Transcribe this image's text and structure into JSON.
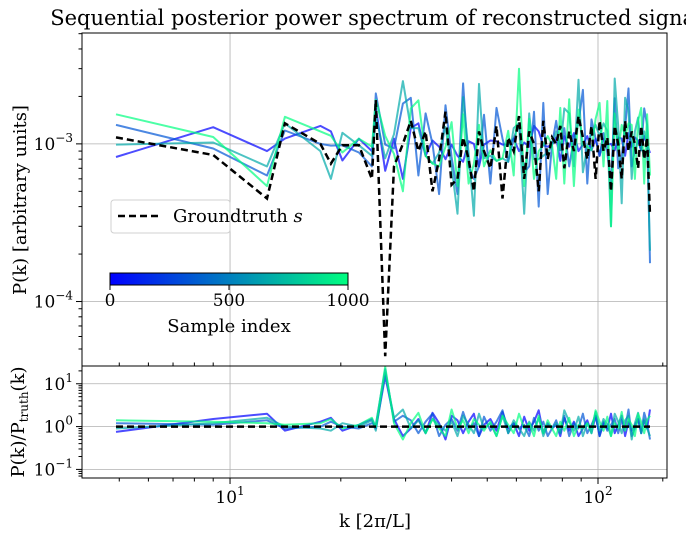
{
  "chart_data": [
    {
      "type": "line",
      "title": "Sequential posterior power spectrum of reconstructed signal",
      "ylabel": "P(k) [arbitrary units]",
      "xscale": "log",
      "yscale": "log",
      "xlim": [
        3.96,
        154
      ],
      "ylim": [
        3.9e-05,
        0.00505
      ],
      "grid": true,
      "x_ticks": [
        {
          "value": 10,
          "base": "10",
          "exp": "1"
        },
        {
          "value": 100,
          "base": "10",
          "exp": "2"
        }
      ],
      "y_ticks": [
        {
          "value": 0.001,
          "base": "10",
          "exp": "−3"
        },
        {
          "value": 0.0001,
          "base": "10",
          "exp": "−4"
        }
      ],
      "legend": {
        "placement": "center-left",
        "entries": [
          {
            "label": "Groundtruth s",
            "style": "dashed",
            "color": "#000000"
          }
        ]
      },
      "colorbar": {
        "label": "Sample index",
        "colormap": "winter",
        "range": [
          0,
          1000
        ],
        "ticks": [
          "0",
          "500",
          "1000"
        ],
        "color_start": "#0000ff",
        "color_end": "#00ff80"
      },
      "k": [
        4.9,
        9.0,
        12.6,
        14.1,
        17.6,
        18.8,
        20.2,
        22.4,
        24.3,
        24.9,
        26.4,
        27.9,
        29.5,
        31,
        32.5,
        34,
        35.5,
        37,
        38.5,
        40,
        41.5,
        43,
        44.5,
        46,
        47.5,
        49,
        51,
        53,
        55,
        57,
        59,
        61,
        63,
        65,
        67,
        69,
        71,
        73,
        75,
        77,
        79,
        81,
        83.5,
        86,
        88.5,
        91,
        93.5,
        96,
        98.5,
        101,
        103.5,
        106,
        108.5,
        111,
        113.5,
        116,
        118.5,
        121,
        123.5,
        126,
        128.5,
        131,
        133.5,
        136,
        138.5
      ],
      "groundtruth": [
        0.0011,
        0.00085,
        0.00045,
        0.00135,
        0.001,
        0.00075,
        0.00098,
        0.00098,
        0.0006,
        0.0019,
        4.5e-05,
        0.00072,
        0.001,
        0.0014,
        0.0009,
        0.0012,
        0.0005,
        0.0008,
        0.0016,
        0.00055,
        0.0006,
        0.0011,
        0.0008,
        0.0005,
        0.0012,
        0.0009,
        0.0007,
        0.0013,
        0.00045,
        0.0011,
        0.0009,
        0.0015,
        0.0006,
        0.0012,
        0.001,
        0.0005,
        0.0014,
        0.0008,
        0.0011,
        0.001,
        0.0013,
        0.0007,
        0.0012,
        0.0009,
        0.0015,
        0.0011,
        0.0008,
        0.0013,
        0.0006,
        0.0014,
        0.0009,
        0.0011,
        0.0005,
        0.0013,
        0.001,
        0.0006,
        0.0014,
        0.0009,
        0.0012,
        0.001,
        0.0007,
        0.0013,
        0.0008,
        0.0011,
        0.00035
      ]
    },
    {
      "type": "line",
      "xlabel": "k [2π/L]",
      "ylabel": "P(k)/P_truth(k)",
      "ylabel_parts": {
        "main": "P(k)/P",
        "sub": "truth",
        "tail": "(k)"
      },
      "xscale": "log",
      "yscale": "log",
      "ylim": [
        0.063,
        26
      ],
      "grid": true,
      "y_ticks": [
        {
          "value": 10,
          "base": "10",
          "exp": "1"
        },
        {
          "value": 1,
          "base": "10",
          "exp": "0"
        },
        {
          "value": 0.1,
          "base": "10",
          "exp": "−1"
        }
      ],
      "groundtruth_ratio": 1.0,
      "sample_ratios": [
        {
          "sample_index": 0,
          "color": "#0000ff",
          "values": [
            0.75,
            1.5,
            2.0,
            0.8,
            1.3,
            1.6,
            0.8,
            1.1,
            1.5,
            0.9,
            15,
            1.5,
            0.6,
            0.9,
            1.5,
            0.7,
            2.1,
            1.2,
            0.5,
            1.8,
            1.4,
            0.7,
            1.3,
            2.0,
            0.6,
            1.1,
            1.5,
            0.8,
            2.2,
            0.9,
            1.2,
            0.6,
            1.7,
            0.8,
            1.3,
            2.4,
            0.7,
            1.2,
            0.9,
            1.1,
            0.6,
            1.6,
            0.8,
            1.3,
            0.6,
            0.9,
            1.4,
            0.7,
            1.8,
            0.6,
            1.2,
            0.9,
            2.0,
            0.7,
            1.1,
            1.8,
            0.6,
            1.3,
            0.8,
            1.1,
            1.5,
            0.7,
            1.4,
            0.9,
            2.5
          ]
        },
        {
          "sample_index": 333,
          "color": "#0055d5",
          "values": [
            1.2,
            1.1,
            1.4,
            0.9,
            1.0,
            1.3,
            1.0,
            0.9,
            1.2,
            1.1,
            22,
            1.3,
            1.8,
            1.4,
            0.7,
            1.3,
            2.0,
            0.6,
            1.1,
            1.5,
            0.8,
            2.2,
            0.9,
            1.2,
            0.6,
            1.7,
            0.8,
            1.3,
            2.4,
            0.7,
            1.2,
            0.9,
            1.1,
            0.6,
            1.6,
            0.8,
            1.3,
            0.6,
            0.9,
            1.4,
            0.7,
            1.8,
            0.6,
            1.2,
            0.9,
            2.0,
            0.7,
            1.1,
            1.8,
            0.6,
            1.3,
            0.8,
            1.1,
            1.5,
            0.7,
            1.4,
            0.9,
            2.5,
            0.6,
            0.9,
            1.5,
            0.7,
            2.1,
            1.2,
            0.5
          ]
        },
        {
          "sample_index": 667,
          "color": "#00aaaa",
          "values": [
            0.9,
            1.2,
            1.6,
            1.0,
            0.9,
            0.8,
            1.2,
            1.0,
            1.4,
            0.8,
            18,
            1.6,
            2.5,
            0.9,
            1.4,
            0.7,
            1.5,
            1.1,
            0.8,
            1.3,
            0.6,
            1.8,
            1.1,
            0.7,
            2.0,
            0.9,
            1.2,
            0.6,
            1.8,
            0.7,
            1.4,
            0.9,
            0.6,
            1.3,
            0.8,
            1.6,
            0.6,
            1.1,
            0.9,
            1.2,
            0.7,
            2.4,
            1.3,
            0.8,
            1.7,
            0.6,
            1.2,
            0.9,
            2.2,
            0.8,
            1.5,
            1.1,
            0.6,
            2.0,
            1.3,
            0.7,
            1.4,
            1.8,
            0.5,
            1.2,
            2.1,
            0.7,
            1.5,
            0.9,
            0.6
          ]
        },
        {
          "sample_index": 1000,
          "color": "#00ff80",
          "values": [
            1.4,
            1.3,
            1.2,
            1.1,
            1.2,
            1.5,
            0.9,
            1.1,
            1.6,
            1.0,
            25,
            1.2,
            0.5,
            1.2,
            2.1,
            0.7,
            1.5,
            0.9,
            0.6,
            2.5,
            0.9,
            1.4,
            0.7,
            1.5,
            1.1,
            0.8,
            1.3,
            0.6,
            1.8,
            1.1,
            0.7,
            2.0,
            0.9,
            1.2,
            0.6,
            1.8,
            0.7,
            1.4,
            0.9,
            0.6,
            1.3,
            0.8,
            1.6,
            0.6,
            1.1,
            0.9,
            1.2,
            0.7,
            2.4,
            1.3,
            0.8,
            1.7,
            0.6,
            1.2,
            0.9,
            2.2,
            0.8,
            1.5,
            1.1,
            0.6,
            2.0,
            1.3,
            0.7,
            1.4,
            1.8
          ]
        }
      ]
    }
  ]
}
